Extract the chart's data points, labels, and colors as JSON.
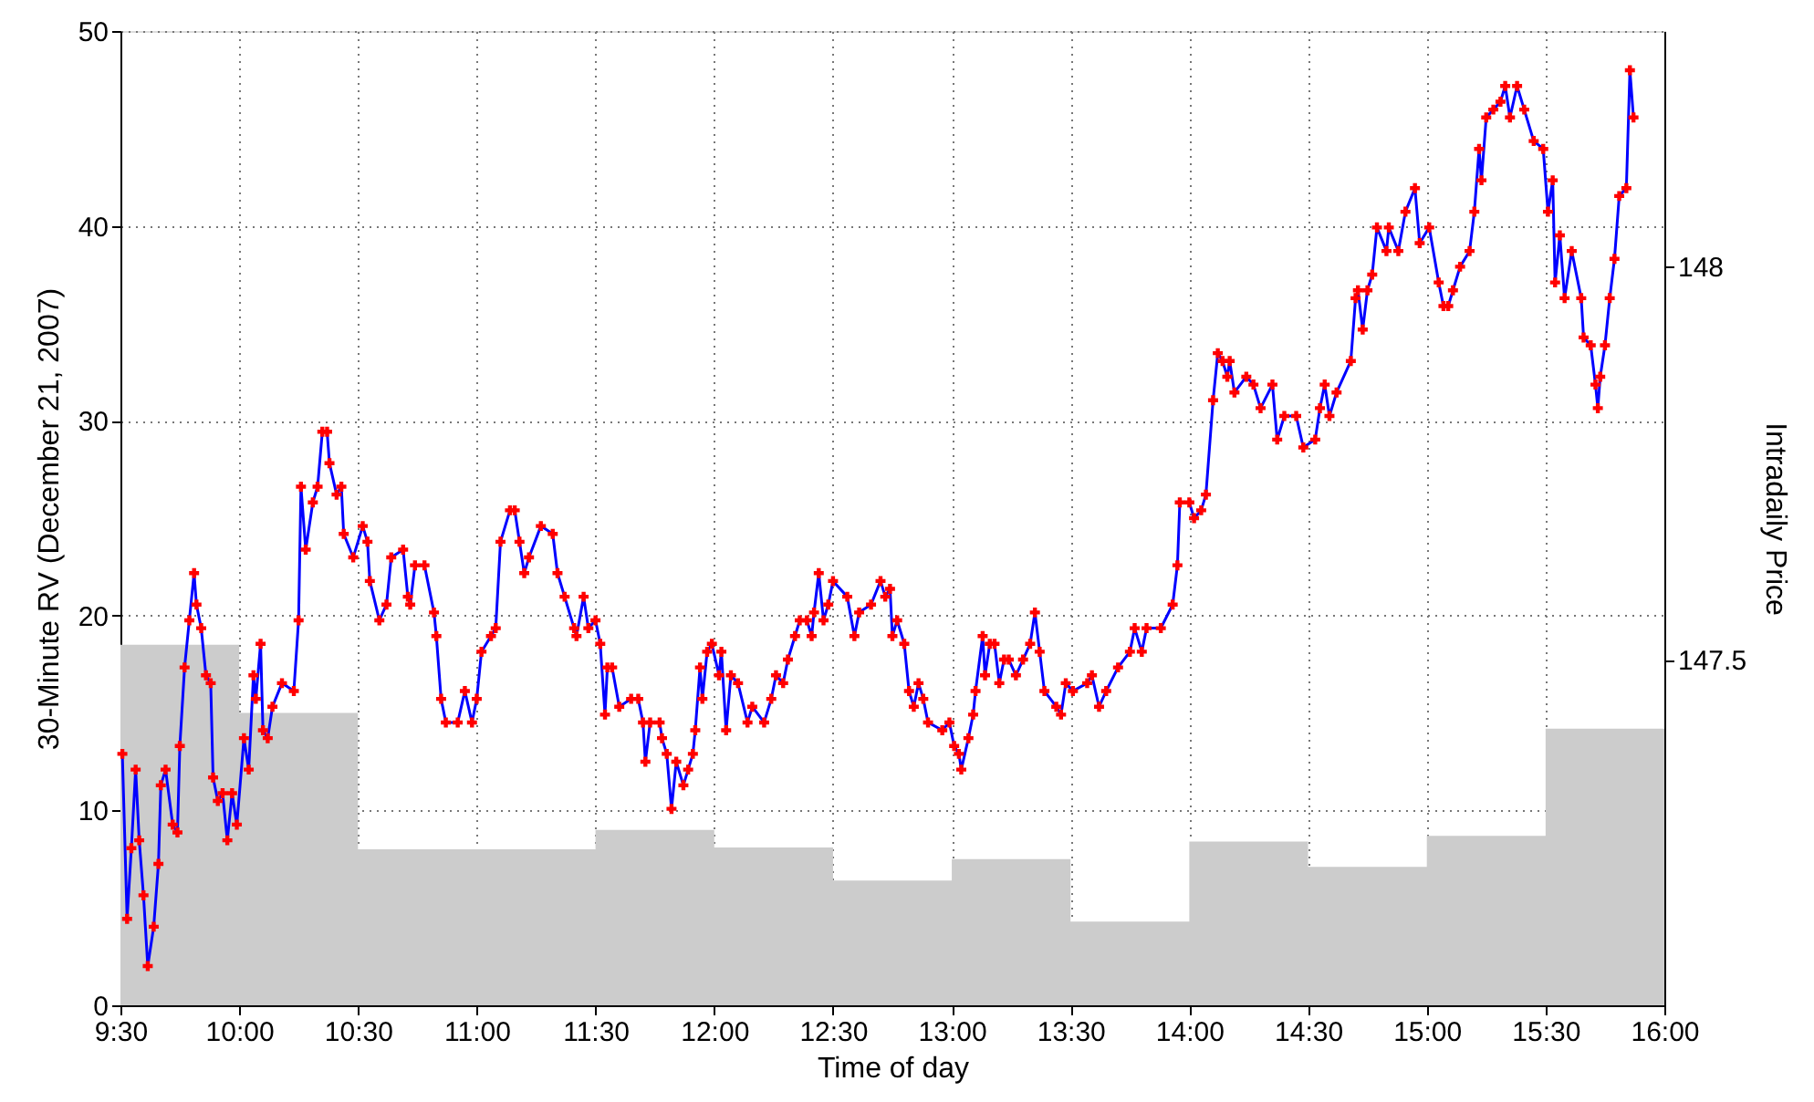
{
  "chart_data": {
    "type": "line",
    "xlabel": "Time of day",
    "ylabel": "30-Minute RV (December 21, 2007)",
    "y2label": "Intradaily Price",
    "xlim": [
      9.5,
      16
    ],
    "xticks": [
      {
        "value": 9.5,
        "label": "9:30"
      },
      {
        "value": 10,
        "label": "10:00"
      },
      {
        "value": 10.5,
        "label": "10:30"
      },
      {
        "value": 11,
        "label": "11:00"
      },
      {
        "value": 11.5,
        "label": "11:30"
      },
      {
        "value": 12,
        "label": "12:00"
      },
      {
        "value": 12.5,
        "label": "12:30"
      },
      {
        "value": 13,
        "label": "13:00"
      },
      {
        "value": 13.5,
        "label": "13:30"
      },
      {
        "value": 14,
        "label": "14:00"
      },
      {
        "value": 14.5,
        "label": "14:30"
      },
      {
        "value": 15,
        "label": "15:00"
      },
      {
        "value": 15.5,
        "label": "15:30"
      },
      {
        "value": 16,
        "label": "16:00"
      }
    ],
    "ylim": [
      0,
      50
    ],
    "yticks": [
      0,
      10,
      20,
      30,
      40,
      50
    ],
    "y2lim": [
      147.06,
      148.3
    ],
    "y2ticks": [
      147.5,
      {
        "value": 148,
        "label": "148"
      }
    ],
    "grid": true,
    "line_style": "solid",
    "series": [
      {
        "type": "area",
        "color": "#cccccc",
        "x": [
          9.5,
          10,
          10.5,
          11,
          11.5,
          12,
          12.5,
          13,
          13.5,
          14,
          14.5,
          15,
          15.5,
          16
        ],
        "values": [
          18.5,
          15,
          8,
          8,
          9,
          8.1,
          6.4,
          7.5,
          4.3,
          8.4,
          7.1,
          8.7,
          14.2,
          14.2
        ]
      },
      {
        "axis": "y2",
        "marker": "cross",
        "color": "#0000ff",
        "x": [
          9.508,
          9.528,
          9.546,
          9.564,
          9.579,
          9.597,
          9.615,
          9.64,
          9.66,
          9.67,
          9.69,
          9.72,
          9.74,
          9.75,
          9.77,
          9.79,
          9.81,
          9.82,
          9.84,
          9.86,
          9.88,
          9.89,
          9.91,
          9.93,
          9.95,
          9.97,
          9.99,
          10.02,
          10.04,
          10.06,
          10.07,
          10.09,
          10.1,
          10.12,
          10.14,
          10.18,
          10.23,
          10.25,
          10.26,
          10.28,
          10.31,
          10.33,
          10.35,
          10.37,
          10.38,
          10.41,
          10.43,
          10.44,
          10.48,
          10.52,
          10.54,
          10.55,
          10.59,
          10.62,
          10.64,
          10.69,
          10.71,
          10.72,
          10.74,
          10.78,
          10.82,
          10.83,
          10.85,
          10.87,
          10.92,
          10.95,
          10.98,
          11.0,
          11.02,
          11.06,
          11.08,
          11.1,
          11.14,
          11.16,
          11.18,
          11.2,
          11.22,
          11.27,
          11.32,
          11.34,
          11.37,
          11.41,
          11.42,
          11.45,
          11.47,
          11.5,
          11.52,
          11.54,
          11.55,
          11.57,
          11.6,
          11.65,
          11.68,
          11.7,
          11.71,
          11.73,
          11.77,
          11.78,
          11.8,
          11.82,
          11.84,
          11.87,
          11.89,
          11.91,
          11.92,
          11.94,
          11.95,
          11.97,
          11.99,
          12.02,
          12.03,
          12.05,
          12.07,
          12.1,
          12.14,
          12.16,
          12.21,
          12.24,
          12.26,
          12.29,
          12.31,
          12.34,
          12.36,
          12.39,
          12.41,
          12.42,
          12.44,
          12.46,
          12.48,
          12.5,
          12.56,
          12.59,
          12.61,
          12.66,
          12.7,
          12.72,
          12.74,
          12.75,
          12.77,
          12.8,
          12.82,
          12.84,
          12.86,
          12.88,
          12.9,
          12.96,
          12.99,
          13.01,
          13.03,
          13.04,
          13.07,
          13.09,
          13.1,
          13.13,
          13.14,
          13.16,
          13.18,
          13.2,
          13.22,
          13.24,
          13.27,
          13.3,
          13.33,
          13.35,
          13.37,
          13.39,
          13.44,
          13.46,
          13.48,
          13.51,
          13.57,
          13.59,
          13.62,
          13.65,
          13.7,
          13.75,
          13.77,
          13.8,
          13.82,
          13.88,
          13.93,
          13.95,
          13.96,
          14.0,
          14.02,
          14.05,
          14.07,
          14.1,
          14.12,
          14.14,
          14.16,
          14.17,
          14.19,
          14.24,
          14.27,
          14.3,
          14.35,
          14.37,
          14.4,
          14.45,
          14.48,
          14.53,
          14.55,
          14.57,
          14.59,
          14.62,
          14.68,
          14.7,
          14.71,
          14.73,
          14.75,
          14.77,
          14.79,
          14.83,
          14.84,
          14.88,
          14.91,
          14.95,
          14.97,
          15.01,
          15.05,
          15.07,
          15.09,
          15.11,
          15.14,
          15.18,
          15.2,
          15.22,
          15.23,
          15.25,
          15.28,
          15.31,
          15.33,
          15.35,
          15.38,
          15.41,
          15.45,
          15.49,
          15.51,
          15.53,
          15.54,
          15.56,
          15.58,
          15.61,
          15.65,
          15.66,
          15.69,
          15.71,
          15.72,
          15.73,
          15.75,
          15.77,
          15.79,
          15.81,
          15.84,
          15.855,
          15.87
        ],
        "values": [
          147.38,
          147.17,
          147.26,
          147.36,
          147.27,
          147.2,
          147.11,
          147.16,
          147.24,
          147.34,
          147.36,
          147.29,
          147.28,
          147.39,
          147.49,
          147.55,
          147.61,
          147.57,
          147.54,
          147.48,
          147.47,
          147.35,
          147.32,
          147.33,
          147.27,
          147.33,
          147.29,
          147.4,
          147.36,
          147.48,
          147.45,
          147.52,
          147.41,
          147.4,
          147.44,
          147.47,
          147.46,
          147.55,
          147.72,
          147.64,
          147.7,
          147.72,
          147.79,
          147.79,
          147.75,
          147.71,
          147.72,
          147.66,
          147.63,
          147.67,
          147.65,
          147.6,
          147.55,
          147.57,
          147.63,
          147.64,
          147.58,
          147.57,
          147.62,
          147.62,
          147.56,
          147.53,
          147.45,
          147.42,
          147.42,
          147.46,
          147.42,
          147.45,
          147.51,
          147.53,
          147.54,
          147.65,
          147.69,
          147.69,
          147.65,
          147.61,
          147.63,
          147.67,
          147.66,
          147.61,
          147.58,
          147.54,
          147.53,
          147.58,
          147.54,
          147.55,
          147.52,
          147.43,
          147.49,
          147.49,
          147.44,
          147.45,
          147.45,
          147.42,
          147.37,
          147.42,
          147.42,
          147.4,
          147.38,
          147.31,
          147.37,
          147.34,
          147.36,
          147.38,
          147.41,
          147.49,
          147.45,
          147.51,
          147.52,
          147.48,
          147.51,
          147.41,
          147.48,
          147.47,
          147.42,
          147.44,
          147.42,
          147.45,
          147.48,
          147.47,
          147.5,
          147.53,
          147.55,
          147.55,
          147.53,
          147.56,
          147.61,
          147.55,
          147.57,
          147.6,
          147.58,
          147.53,
          147.56,
          147.57,
          147.6,
          147.58,
          147.59,
          147.53,
          147.55,
          147.52,
          147.46,
          147.44,
          147.47,
          147.45,
          147.42,
          147.41,
          147.42,
          147.39,
          147.38,
          147.36,
          147.4,
          147.43,
          147.46,
          147.53,
          147.48,
          147.52,
          147.52,
          147.47,
          147.5,
          147.5,
          147.48,
          147.5,
          147.52,
          147.56,
          147.51,
          147.46,
          147.44,
          147.43,
          147.47,
          147.46,
          147.47,
          147.48,
          147.44,
          147.46,
          147.49,
          147.51,
          147.54,
          147.51,
          147.54,
          147.54,
          147.57,
          147.62,
          147.7,
          147.7,
          147.68,
          147.69,
          147.71,
          147.83,
          147.89,
          147.88,
          147.86,
          147.88,
          147.84,
          147.86,
          147.85,
          147.82,
          147.85,
          147.78,
          147.81,
          147.81,
          147.77,
          147.78,
          147.82,
          147.85,
          147.81,
          147.84,
          147.88,
          147.96,
          147.97,
          147.92,
          147.97,
          147.99,
          148.05,
          148.02,
          148.05,
          148.02,
          148.07,
          148.1,
          148.03,
          148.05,
          147.98,
          147.95,
          147.95,
          147.97,
          148.0,
          148.02,
          148.07,
          148.15,
          148.11,
          148.19,
          148.2,
          148.21,
          148.23,
          148.19,
          148.23,
          148.2,
          148.16,
          148.15,
          148.07,
          148.11,
          147.98,
          148.04,
          147.96,
          148.02,
          147.96,
          147.91,
          147.9,
          147.85,
          147.82,
          147.86,
          147.9,
          147.96,
          148.01,
          148.09,
          148.1,
          148.25,
          148.19
        ]
      }
    ]
  }
}
